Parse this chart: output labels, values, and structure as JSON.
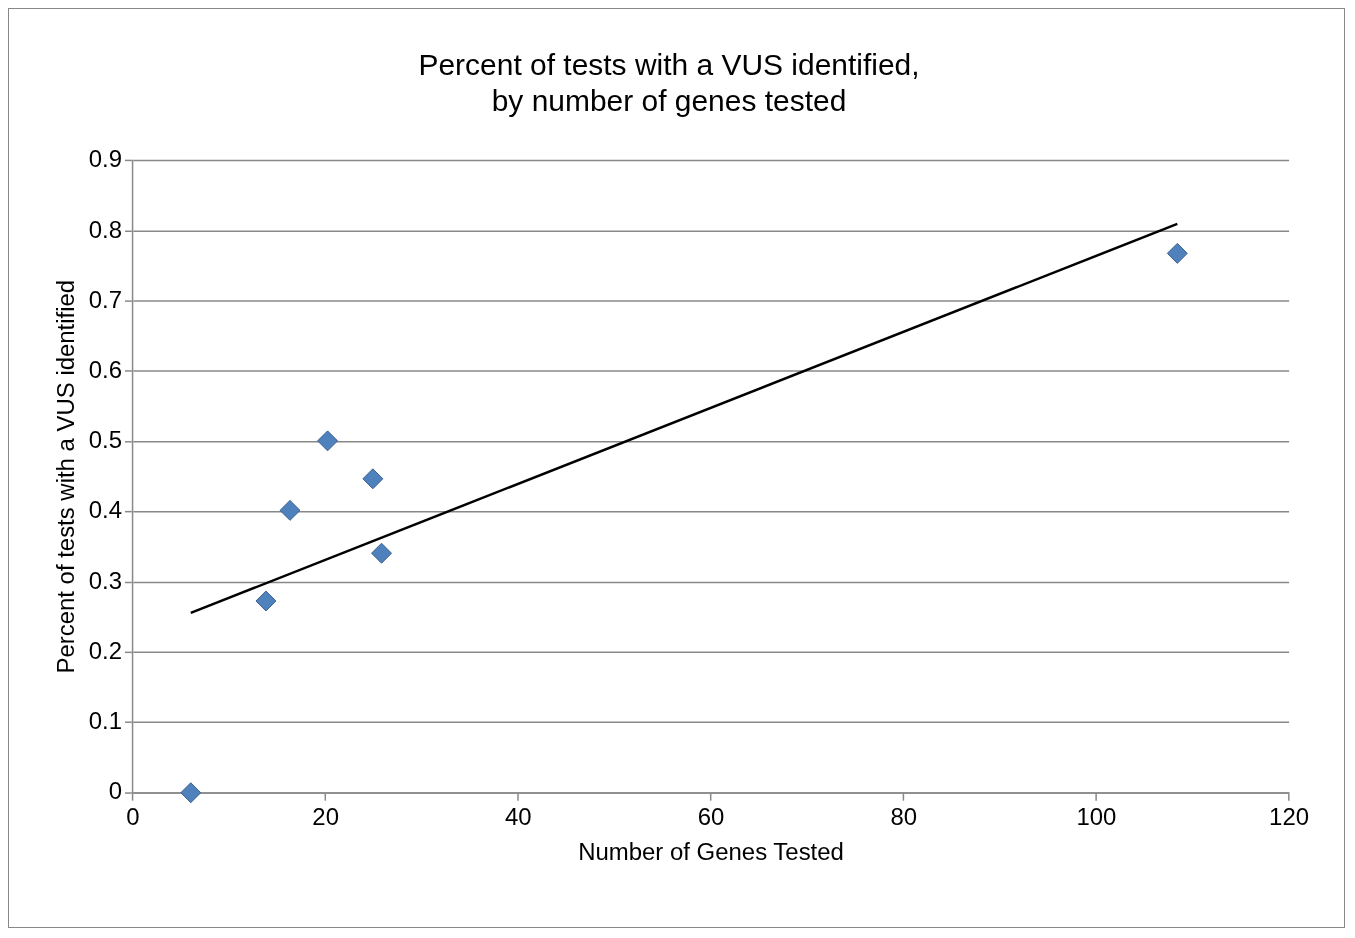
{
  "chart_data": {
    "type": "scatter",
    "title": "Percent of tests with a VUS identified,\nby number of genes tested",
    "xlabel": "Number of Genes Tested",
    "ylabel": "Percent of tests with a VUS identified",
    "xlim": [
      0,
      120
    ],
    "xticks": [
      0,
      20,
      40,
      60,
      80,
      100,
      120
    ],
    "ylim": [
      0,
      0.9
    ],
    "yticks": [
      0,
      0.1,
      0.2,
      0.3,
      0.4,
      0.5,
      0.6,
      0.7,
      0.8,
      0.9
    ],
    "grid": "y",
    "legend": false,
    "series": [
      {
        "color": "#4f81bd",
        "marker": "diamond",
        "x": [
          6,
          13.8,
          16.3,
          20.2,
          24.9,
          25.8,
          108.4
        ],
        "values": [
          0,
          0.273,
          0.402,
          0.501,
          0.447,
          0.341,
          0.768
        ]
      },
      {
        "type": "line",
        "color": "#000000",
        "marker": "none",
        "x": [
          6,
          108.4
        ],
        "values": [
          0.256,
          0.81
        ]
      }
    ]
  }
}
